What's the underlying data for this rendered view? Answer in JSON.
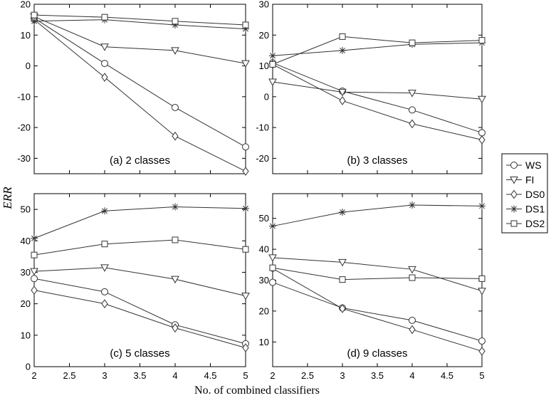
{
  "chart_data": {
    "type": "line",
    "xlabel": "No. of combined classifiers",
    "ylabel": "ERR",
    "legend": {
      "placement": "right-center",
      "entries": [
        {
          "name": "WS",
          "marker": "circle"
        },
        {
          "name": "FI",
          "marker": "triangle-down"
        },
        {
          "name": "DS0",
          "marker": "diamond"
        },
        {
          "name": "DS1",
          "marker": "asterisk"
        },
        {
          "name": "DS2",
          "marker": "square"
        }
      ]
    },
    "grid": false,
    "line_color": "#333333",
    "panels": [
      {
        "label": "(a) 2 classes",
        "x": [
          2,
          3,
          4,
          5
        ],
        "xlim": [
          2,
          5
        ],
        "ylim": [
          -35,
          20
        ],
        "xticks": [
          "2",
          "2.5",
          "3",
          "3.5",
          "4",
          "4.5",
          "5"
        ],
        "yticks": [
          20,
          10,
          0,
          -10,
          -20,
          -30
        ],
        "series": [
          {
            "name": "WS",
            "values": [
              15.5,
              0.8,
              -13.5,
              -26.3
            ]
          },
          {
            "name": "FI",
            "values": [
              16.0,
              6.2,
              5.0,
              0.8
            ]
          },
          {
            "name": "DS0",
            "values": [
              15.0,
              -3.7,
              -22.8,
              -34.2
            ]
          },
          {
            "name": "DS1",
            "values": [
              14.5,
              15.0,
              13.3,
              12.0
            ]
          },
          {
            "name": "DS2",
            "values": [
              16.5,
              15.8,
              14.5,
              13.3
            ]
          }
        ]
      },
      {
        "label": "(b) 3 classes",
        "x": [
          2,
          3,
          4,
          5
        ],
        "xlim": [
          2,
          5
        ],
        "ylim": [
          -25,
          30
        ],
        "xticks": [
          "2",
          "2.5",
          "3",
          "3.5",
          "4",
          "4.5",
          "5"
        ],
        "yticks": [
          30,
          20,
          10,
          0,
          -10,
          -20
        ],
        "series": [
          {
            "name": "WS",
            "values": [
              11.0,
              1.8,
              -4.3,
              -11.7
            ]
          },
          {
            "name": "FI",
            "values": [
              4.8,
              1.5,
              1.2,
              -0.8
            ]
          },
          {
            "name": "DS0",
            "values": [
              10.5,
              -1.3,
              -8.8,
              -14.0
            ]
          },
          {
            "name": "DS1",
            "values": [
              13.3,
              15.0,
              17.0,
              17.5
            ]
          },
          {
            "name": "DS2",
            "values": [
              10.5,
              19.5,
              17.5,
              18.3
            ]
          }
        ]
      },
      {
        "label": "(c) 5 classes",
        "x": [
          2,
          3,
          4,
          5
        ],
        "xlim": [
          2,
          5
        ],
        "ylim": [
          0,
          55
        ],
        "xticks": [
          "2",
          "2.5",
          "3",
          "3.5",
          "4",
          "4.5",
          "5"
        ],
        "yticks": [
          50,
          40,
          30,
          20,
          10,
          0
        ],
        "series": [
          {
            "name": "WS",
            "values": [
              28.0,
              23.8,
              13.3,
              7.3
            ]
          },
          {
            "name": "FI",
            "values": [
              30.3,
              31.5,
              27.8,
              22.5
            ]
          },
          {
            "name": "DS0",
            "values": [
              24.3,
              20.0,
              12.3,
              6.0
            ]
          },
          {
            "name": "DS1",
            "values": [
              40.8,
              49.5,
              50.8,
              50.3
            ]
          },
          {
            "name": "DS2",
            "values": [
              35.5,
              39.0,
              40.3,
              37.3
            ]
          }
        ]
      },
      {
        "label": "(d) 9 classes",
        "x": [
          2,
          3,
          4,
          5
        ],
        "xlim": [
          2,
          5
        ],
        "ylim": [
          2,
          58
        ],
        "xticks": [
          "2",
          "2.5",
          "3",
          "3.5",
          "4",
          "4.5",
          "5"
        ],
        "yticks": [
          50,
          40,
          30,
          20,
          10
        ],
        "series": [
          {
            "name": "WS",
            "values": [
              29.3,
              21.0,
              17.0,
              10.3
            ]
          },
          {
            "name": "FI",
            "values": [
              37.3,
              35.8,
              33.5,
              26.5
            ]
          },
          {
            "name": "DS0",
            "values": [
              33.8,
              20.8,
              14.0,
              7.0
            ]
          },
          {
            "name": "DS1",
            "values": [
              47.5,
              52.0,
              54.3,
              54.0
            ]
          },
          {
            "name": "DS2",
            "values": [
              34.0,
              30.2,
              30.8,
              30.5
            ]
          }
        ]
      }
    ]
  }
}
